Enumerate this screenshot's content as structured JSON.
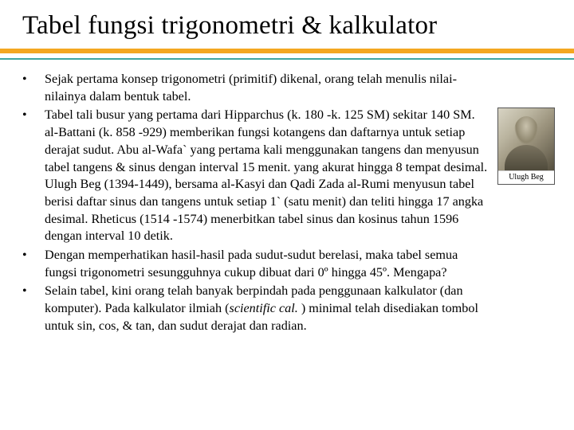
{
  "title": "Tabel fungsi trigonometri & kalkulator",
  "decor": {
    "stripe_color": "#f4a720",
    "teal_color": "#3fa6a0"
  },
  "bullets": [
    "Sejak pertama konsep trigonometri (primitif) dikenal, orang telah menulis nilai-nilainya dalam bentuk tabel.",
    "Tabel tali busur yang pertama dari Hipparchus (k. 180 -k. 125 SM) sekitar 140 SM. al-Battani (k. 858 -929) memberikan fungsi kotangens dan daftarnya untuk setiap derajat sudut. Abu al-Wafa` yang pertama kali menggunakan tangens dan menyusun tabel tangens & sinus dengan interval 15 menit. yang akurat hingga 8 tempat desimal. Ulugh Beg (1394-1449), bersama al-Kasyi dan Qadi Zada al-Rumi menyusun tabel berisi daftar sinus dan tangens untuk setiap 1` (satu menit) dan teliti hingga 17 angka desimal. Rheticus (1514 -1574) menerbitkan tabel sinus dan kosinus tahun 1596 dengan interval 10 detik.",
    "Dengan memperhatikan hasil-hasil pada sudut-sudut berelasi, maka tabel semua fungsi trigonometri sesungguhnya cukup dibuat dari 0º hingga 45º. Mengapa?",
    "Selain tabel, kini orang telah banyak berpindah pada penggunaan kalkulator (dan komputer). Pada kalkulator ilmiah (scientific cal. ) minimal telah disediakan tombol untuk sin, cos, & tan, dan sudut derajat dan radian."
  ],
  "portrait": {
    "caption": "Ulugh Beg"
  }
}
